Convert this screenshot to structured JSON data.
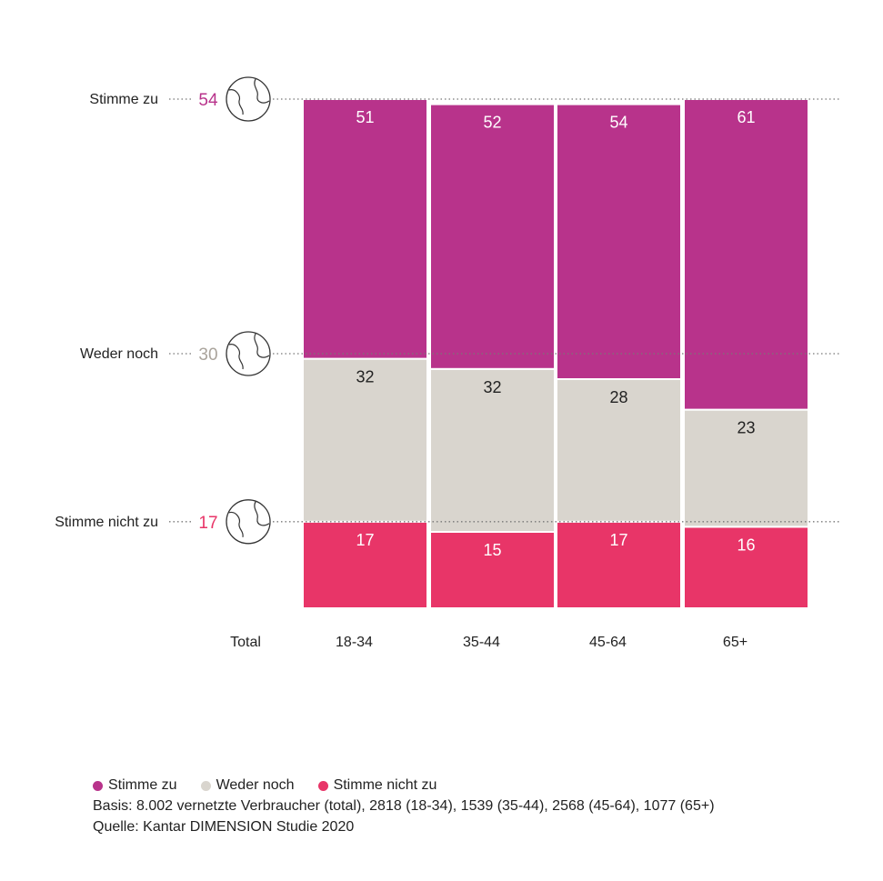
{
  "chart_data": {
    "type": "bar",
    "subtype": "stacked-100",
    "categories": [
      "18-34",
      "35-44",
      "45-64",
      "65+"
    ],
    "series": [
      {
        "name": "Stimme nicht zu",
        "values": [
          17,
          15,
          17,
          16
        ],
        "color": "#e83568"
      },
      {
        "name": "Weder noch",
        "values": [
          32,
          32,
          28,
          23
        ],
        "color": "#d9d5ce"
      },
      {
        "name": "Stimme zu",
        "values": [
          51,
          52,
          54,
          61
        ],
        "color": "#b8338b"
      }
    ],
    "total": {
      "label": "Total",
      "rows": [
        {
          "label": "Stimme zu",
          "value": "54",
          "color": "#b8338b"
        },
        {
          "label": "Weder noch",
          "value": "30",
          "color": "#aaa49c"
        },
        {
          "label": "Stimme nicht zu",
          "value": "17",
          "color": "#e83568"
        }
      ]
    },
    "ylim": [
      0,
      100
    ],
    "legend_position": "bottom"
  },
  "legend": [
    {
      "label": "Stimme zu",
      "color": "#b8338b"
    },
    {
      "label": "Weder noch",
      "color": "#d9d5ce"
    },
    {
      "label": "Stimme nicht zu",
      "color": "#e83568"
    }
  ],
  "notes": {
    "basis": "Basis: 8.002 vernetzte Verbraucher (total), 2818 (18-34), 1539 (35-44), 2568 (45-64), 1077 (65+)",
    "source": "Quelle: Kantar DIMENSION Studie 2020"
  }
}
